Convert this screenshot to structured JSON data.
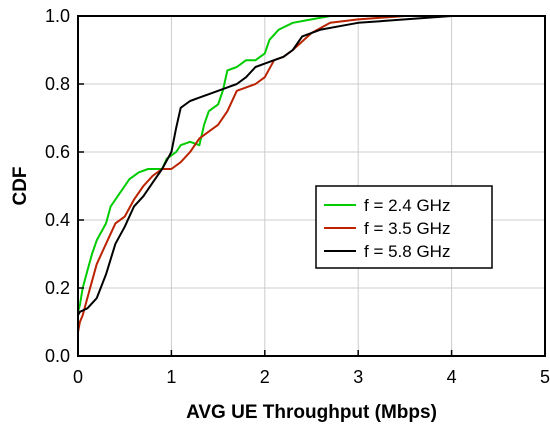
{
  "chart_data": {
    "type": "line",
    "xlabel": "AVG UE Throughput (Mbps)",
    "ylabel": "CDF",
    "xlim": [
      0,
      5
    ],
    "ylim": [
      0,
      1
    ],
    "xticks": [
      0,
      1,
      2,
      3,
      4,
      5
    ],
    "xtick_labels": [
      "0",
      "1",
      "2",
      "3",
      "4",
      "5"
    ],
    "yticks": [
      0,
      0.2,
      0.4,
      0.6,
      0.8,
      1.0
    ],
    "ytick_labels": [
      "0.0",
      "0.2",
      "0.4",
      "0.6",
      "0.8",
      "1.0"
    ],
    "grid": true,
    "legend_position": "center-right",
    "series": [
      {
        "name": "f = 2.4 GHz",
        "color": "#00cc00",
        "x": [
          0,
          0.02,
          0.05,
          0.1,
          0.15,
          0.2,
          0.3,
          0.35,
          0.45,
          0.55,
          0.65,
          0.75,
          0.9,
          0.95,
          1.05,
          1.1,
          1.2,
          1.3,
          1.35,
          1.4,
          1.45,
          1.5,
          1.55,
          1.6,
          1.7,
          1.8,
          1.9,
          2.0,
          2.05,
          2.15,
          2.3,
          2.5,
          2.7,
          3.0,
          3.5,
          4.0,
          4.6
        ],
        "y": [
          0.13,
          0.15,
          0.2,
          0.25,
          0.3,
          0.34,
          0.39,
          0.44,
          0.48,
          0.52,
          0.54,
          0.55,
          0.55,
          0.58,
          0.6,
          0.62,
          0.63,
          0.62,
          0.68,
          0.72,
          0.73,
          0.74,
          0.78,
          0.84,
          0.85,
          0.87,
          0.87,
          0.89,
          0.93,
          0.96,
          0.98,
          0.99,
          1.0,
          1.0,
          1.0,
          1.0,
          1.0
        ]
      },
      {
        "name": "f = 3.5 GHz",
        "color": "#bb2200",
        "x": [
          0,
          0.02,
          0.05,
          0.1,
          0.15,
          0.2,
          0.3,
          0.4,
          0.5,
          0.6,
          0.7,
          0.8,
          0.9,
          1.0,
          1.1,
          1.2,
          1.3,
          1.4,
          1.5,
          1.6,
          1.7,
          1.8,
          1.9,
          2.0,
          2.1,
          2.2,
          2.3,
          2.5,
          2.7,
          3.0,
          3.5,
          4.0,
          4.6
        ],
        "y": [
          0.07,
          0.1,
          0.12,
          0.17,
          0.22,
          0.27,
          0.33,
          0.39,
          0.41,
          0.46,
          0.5,
          0.53,
          0.55,
          0.55,
          0.57,
          0.6,
          0.64,
          0.66,
          0.68,
          0.72,
          0.78,
          0.79,
          0.8,
          0.82,
          0.87,
          0.88,
          0.9,
          0.95,
          0.98,
          0.99,
          1.0,
          1.0,
          1.0
        ]
      },
      {
        "name": "f = 5.8 GHz",
        "color": "#000000",
        "x": [
          0,
          0.02,
          0.1,
          0.2,
          0.3,
          0.4,
          0.5,
          0.6,
          0.7,
          0.8,
          0.9,
          1.0,
          1.05,
          1.1,
          1.2,
          1.3,
          1.4,
          1.5,
          1.6,
          1.7,
          1.8,
          1.9,
          2.0,
          2.1,
          2.2,
          2.3,
          2.4,
          2.6,
          2.8,
          3.0,
          3.5,
          4.0,
          4.6
        ],
        "y": [
          0.12,
          0.13,
          0.14,
          0.17,
          0.24,
          0.33,
          0.38,
          0.44,
          0.47,
          0.51,
          0.55,
          0.6,
          0.67,
          0.73,
          0.75,
          0.76,
          0.77,
          0.78,
          0.79,
          0.8,
          0.82,
          0.85,
          0.86,
          0.87,
          0.88,
          0.9,
          0.94,
          0.96,
          0.97,
          0.98,
          0.99,
          1.0,
          1.0
        ]
      }
    ]
  }
}
